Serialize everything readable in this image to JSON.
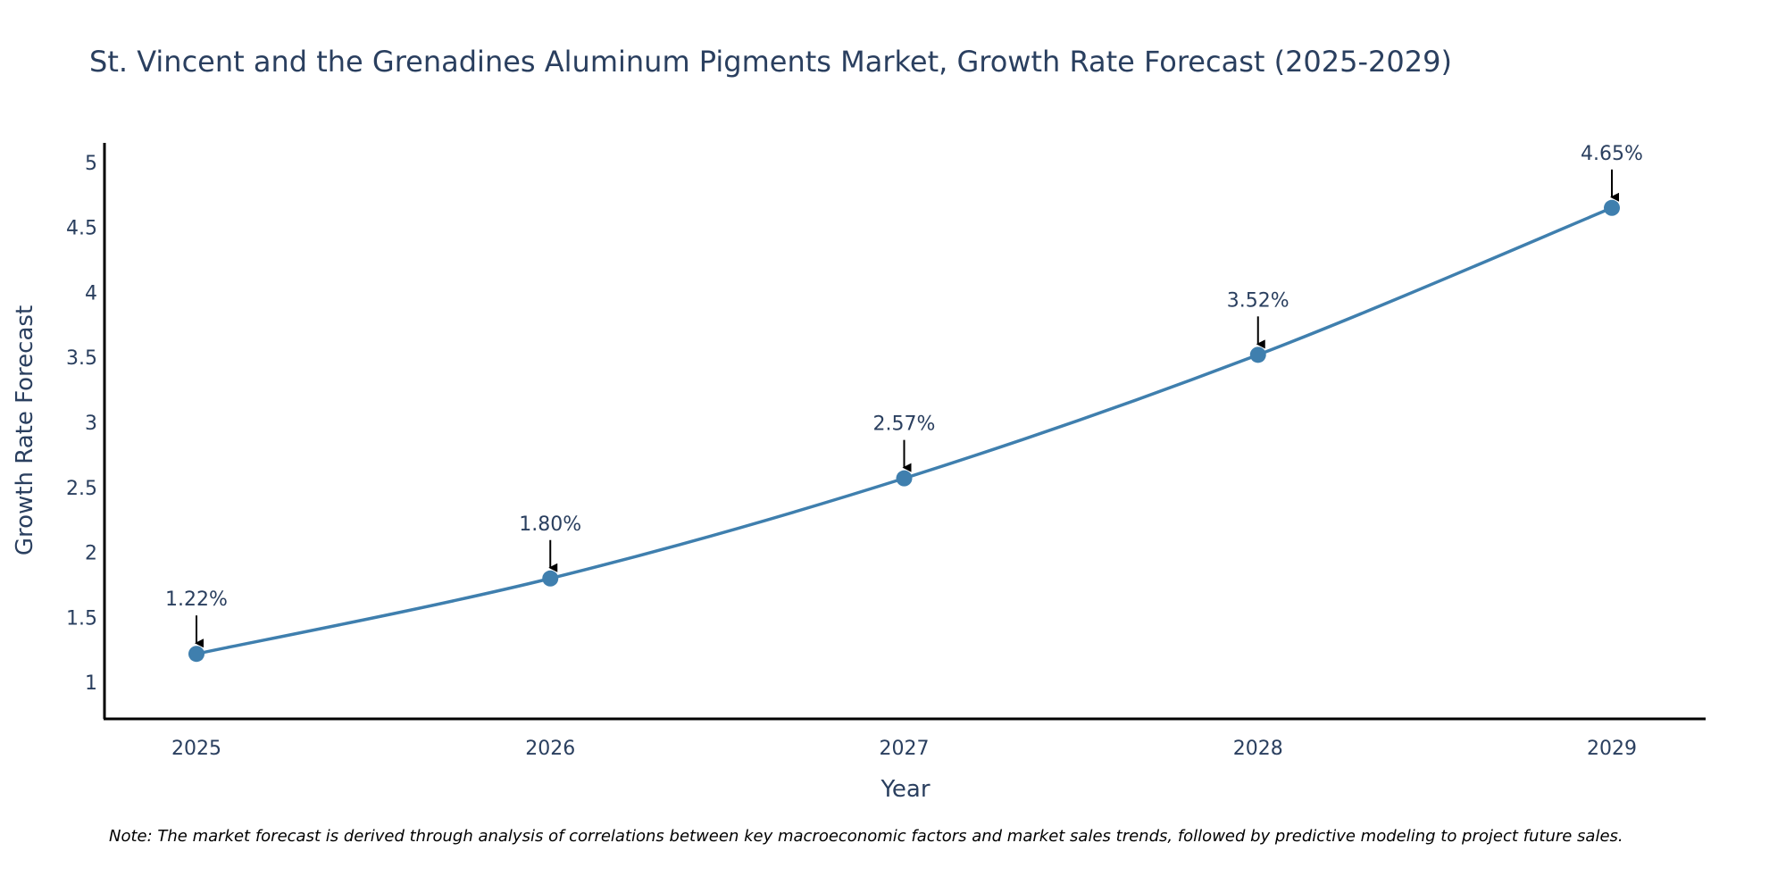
{
  "chart_data": {
    "type": "line",
    "title": "St. Vincent and the Grenadines Aluminum Pigments Market, Growth Rate Forecast (2025-2029)",
    "xlabel": "Year",
    "ylabel": "Growth Rate Forecast",
    "categories": [
      "2025",
      "2026",
      "2027",
      "2028",
      "2029"
    ],
    "values": [
      1.22,
      1.8,
      2.57,
      3.52,
      4.65
    ],
    "data_labels": [
      "1.22%",
      "1.80%",
      "2.57%",
      "3.52%",
      "4.65%"
    ],
    "ylim": [
      0.72,
      5.15
    ],
    "yticks": [
      1,
      1.5,
      2,
      2.5,
      3,
      3.5,
      4,
      4.5,
      5
    ],
    "ytick_labels": [
      "1",
      "1.5",
      "2",
      "2.5",
      "3",
      "3.5",
      "4",
      "4.5",
      "5"
    ],
    "grid": false,
    "line_color": "#3f7fae",
    "marker_color": "#3f7fae",
    "note": "Note: The market forecast is derived through analysis of correlations between key macroeconomic factors and market sales trends, followed by predictive modeling to project future sales."
  }
}
